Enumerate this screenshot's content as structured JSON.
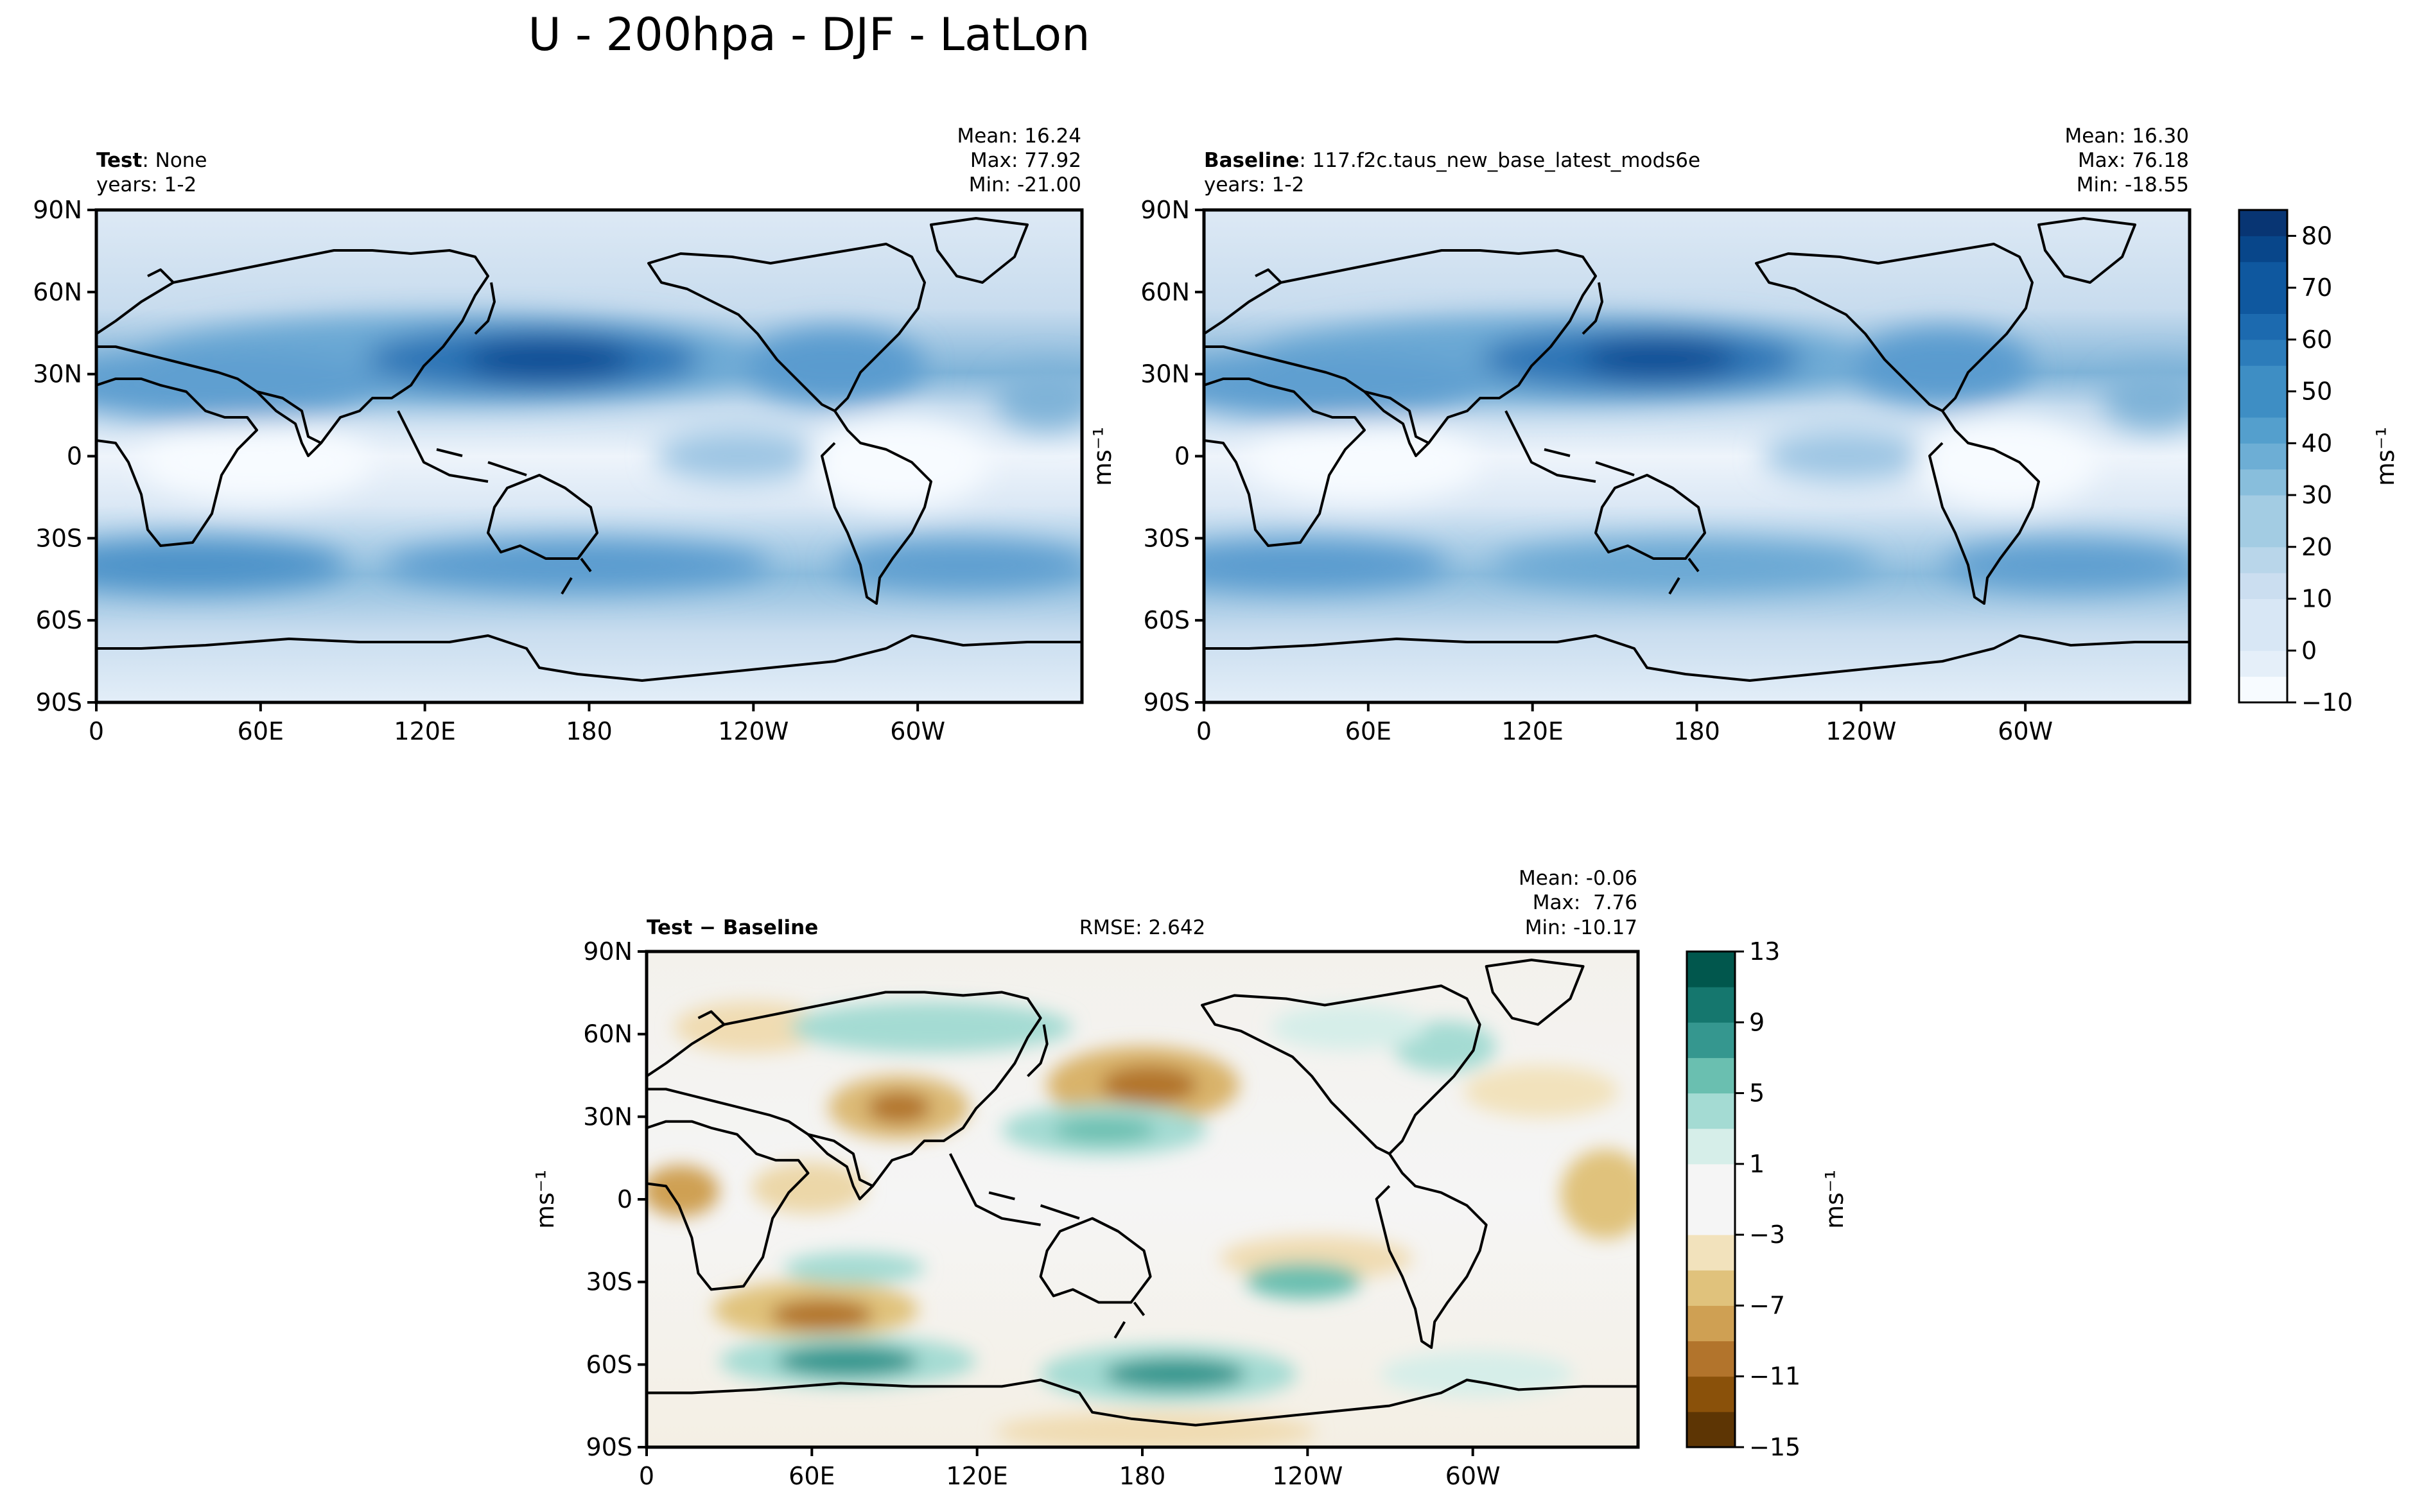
{
  "title": "U - 200hpa - DJF - LatLon",
  "colors": {
    "seq_scale": [
      "#f7fbff",
      "#e5eff9",
      "#d8e7f5",
      "#cbdef0",
      "#b9d6ea",
      "#a3cce3",
      "#88bedc",
      "#6daed5",
      "#549fcd",
      "#3e8ec4",
      "#2c7cba",
      "#1c6aaf",
      "#0f589f",
      "#08468a",
      "#083573"
    ],
    "div_scale": [
      "#5d3504",
      "#8a510a",
      "#b2742c",
      "#cfa053",
      "#e0c27c",
      "#f2e2bc",
      "#f5f5f5",
      "#d6eee9",
      "#a4dbd3",
      "#6abfb0",
      "#35978f",
      "#15776e",
      "#01574d"
    ],
    "coast": "#000000",
    "frame": "#000000"
  },
  "panels": [
    {
      "id": "test",
      "label_bold": "Test",
      "label_rest": ": None",
      "years": "years: 1-2",
      "stats": [
        "Mean: 16.24",
        "Max: 77.92",
        "Min: -21.00"
      ]
    },
    {
      "id": "baseline",
      "label_bold": "Baseline",
      "label_rest": ": 117.f2c.taus_new_base_latest_mods6e",
      "years": "years: 1-2",
      "stats": [
        "Mean: 16.30",
        "Max: 76.18",
        "Min: -18.55"
      ]
    },
    {
      "id": "diff",
      "label_bold": "Test − Baseline",
      "label_rest": "",
      "rmse": "RMSE: 2.642",
      "stats": [
        "Mean: -0.06",
        "Max:  7.76",
        "Min: -10.17"
      ]
    }
  ],
  "units": "ms⁻¹",
  "chart_data": [
    {
      "type": "heatmap",
      "title": "Test: None",
      "xlabel": "",
      "ylabel": "",
      "lon_ticks": [
        "0",
        "60E",
        "120E",
        "180",
        "120W",
        "60W"
      ],
      "lat_ticks": [
        "90N",
        "60N",
        "30N",
        "0",
        "30S",
        "60S",
        "90S"
      ],
      "xlim": [
        0,
        360
      ],
      "ylim": [
        -90,
        90
      ],
      "stats": {
        "mean": 16.24,
        "max": 77.92,
        "min": -21.0
      },
      "colorbar": {
        "levels": [
          -10,
          -5,
          0,
          5,
          10,
          15,
          20,
          25,
          30,
          35,
          40,
          45,
          50,
          55,
          60,
          65,
          70,
          75,
          80,
          85
        ],
        "ticks": [
          "−10",
          "0",
          "10",
          "20",
          "30",
          "40",
          "50",
          "60",
          "70",
          "80"
        ],
        "label": "ms⁻¹"
      }
    },
    {
      "type": "heatmap",
      "title": "Baseline: 117.f2c.taus_new_base_latest_mods6e",
      "xlabel": "",
      "ylabel": "ms⁻¹",
      "lon_ticks": [
        "0",
        "60E",
        "120E",
        "180",
        "120W",
        "60W"
      ],
      "lat_ticks": [
        "90N",
        "60N",
        "30N",
        "0",
        "30S",
        "60S",
        "90S"
      ],
      "xlim": [
        0,
        360
      ],
      "ylim": [
        -90,
        90
      ],
      "stats": {
        "mean": 16.3,
        "max": 76.18,
        "min": -18.55
      }
    },
    {
      "type": "heatmap",
      "title": "Test − Baseline",
      "xlabel": "",
      "ylabel": "ms⁻¹",
      "lon_ticks": [
        "0",
        "60E",
        "120E",
        "180",
        "120W",
        "60W"
      ],
      "lat_ticks": [
        "90N",
        "60N",
        "30N",
        "0",
        "30S",
        "60S",
        "90S"
      ],
      "xlim": [
        0,
        360
      ],
      "ylim": [
        -90,
        90
      ],
      "rmse": 2.642,
      "stats": {
        "mean": -0.06,
        "max": 7.76,
        "min": -10.17
      },
      "colorbar": {
        "levels": [
          -15,
          -13,
          -11,
          -9,
          -7,
          -5,
          -3,
          -1,
          1,
          3,
          5,
          7,
          9,
          11,
          13
        ],
        "ticks": [
          "−15",
          "−11",
          "−7",
          "−3",
          "1",
          "5",
          "9",
          "13"
        ],
        "label": "ms⁻¹"
      }
    }
  ]
}
